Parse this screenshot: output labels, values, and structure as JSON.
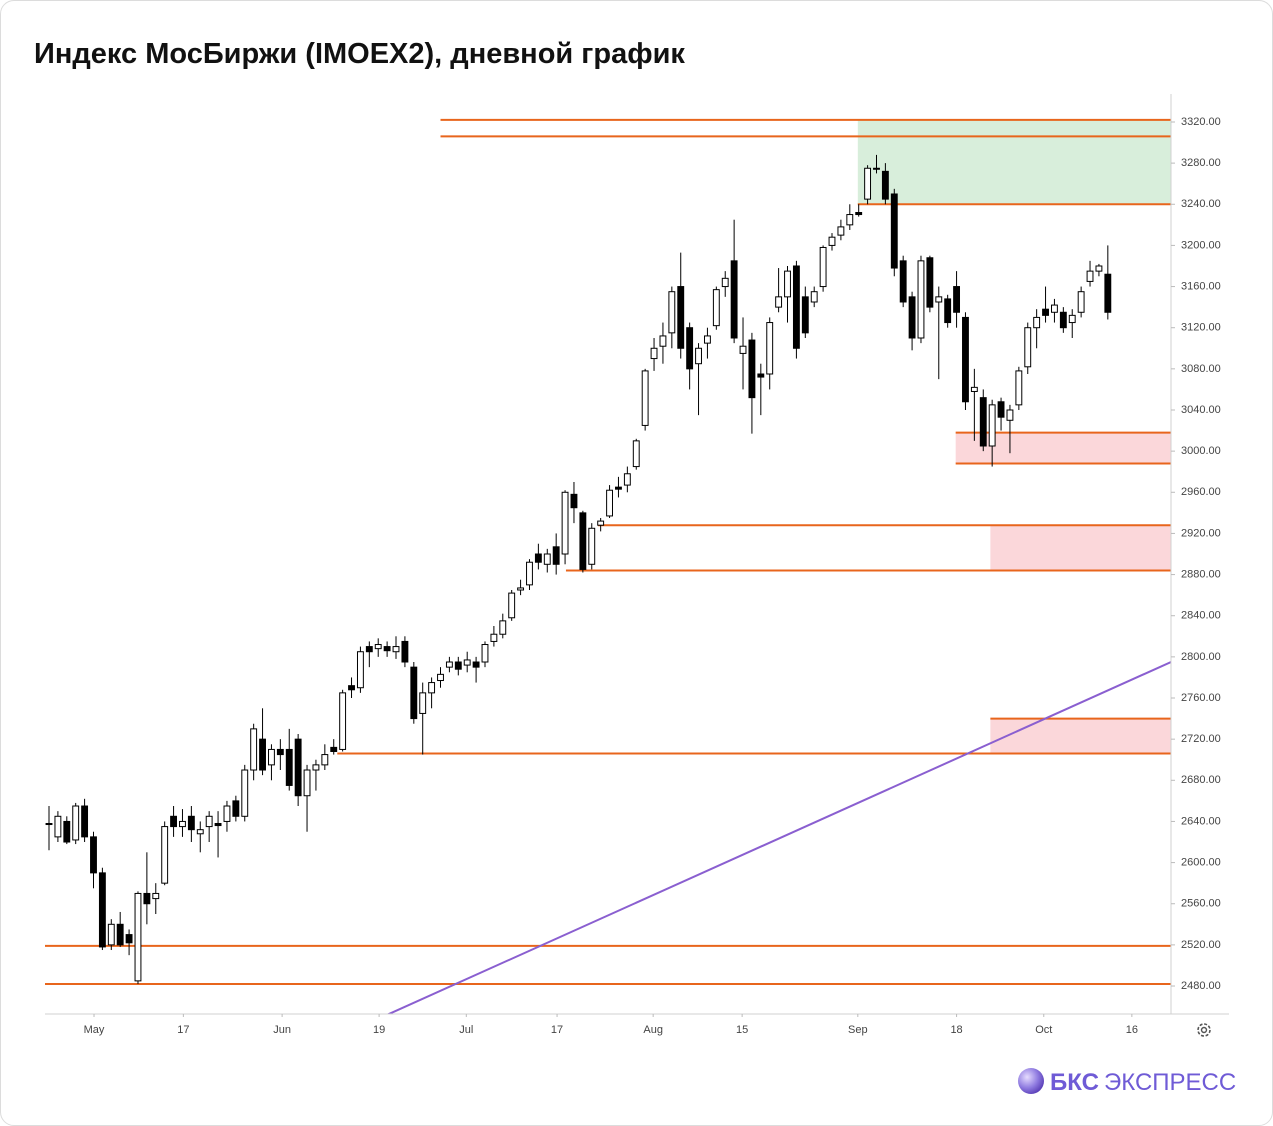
{
  "chart_data": {
    "type": "candlestick",
    "title": "Индекс МосБиржи (IMOEX2), дневной график",
    "logo_brand": "БКС",
    "logo_word": "ЭКСПРЕСС",
    "open": [
      2638,
      2625,
      2640,
      2622,
      2655,
      2625,
      2590,
      2520,
      2540,
      2530,
      2485,
      2570,
      2565,
      2580,
      2645,
      2635,
      2645,
      2628,
      2635,
      2638,
      2640,
      2660,
      2645,
      2690,
      2720,
      2695,
      2710,
      2710,
      2720,
      2665,
      2690,
      2695,
      2712,
      2710,
      2772,
      2770,
      2810,
      2808,
      2810,
      2805,
      2815,
      2790,
      2745,
      2765,
      2777,
      2790,
      2795,
      2792,
      2795,
      2795,
      2815,
      2822,
      2838,
      2865,
      2870,
      2900,
      2890,
      2907,
      2900,
      2958,
      2940,
      2890,
      2928,
      2937,
      2965,
      2967,
      2985,
      3025,
      3090,
      3102,
      3115,
      3160,
      3120,
      3085,
      3105,
      3122,
      3160,
      3185,
      3095,
      3108,
      3075,
      3075,
      3140,
      3150,
      3180,
      3150,
      3145,
      3160,
      3200,
      3210,
      3220,
      3232,
      3245,
      3275,
      3272,
      3250,
      3185,
      3150,
      3110,
      3188,
      3145,
      3148,
      3160,
      3130,
      3058,
      3052,
      3005,
      3048,
      3030,
      3045,
      3082,
      3120,
      3138,
      3135,
      3135,
      3125,
      3135,
      3165,
      3175,
      3172
    ],
    "high": [
      2655,
      2650,
      2645,
      2658,
      2662,
      2630,
      2595,
      2545,
      2552,
      2535,
      2572,
      2610,
      2580,
      2640,
      2655,
      2652,
      2655,
      2640,
      2650,
      2650,
      2660,
      2665,
      2695,
      2735,
      2750,
      2715,
      2720,
      2730,
      2725,
      2695,
      2700,
      2715,
      2720,
      2768,
      2780,
      2810,
      2815,
      2818,
      2815,
      2820,
      2820,
      2795,
      2775,
      2780,
      2790,
      2800,
      2800,
      2805,
      2800,
      2815,
      2830,
      2842,
      2865,
      2875,
      2895,
      2910,
      2905,
      2920,
      2962,
      2970,
      2942,
      2930,
      2935,
      2967,
      2975,
      2985,
      3012,
      3080,
      3110,
      3125,
      3160,
      3193,
      3125,
      3105,
      3120,
      3160,
      3175,
      3225,
      3130,
      3115,
      3085,
      3130,
      3178,
      3180,
      3185,
      3160,
      3160,
      3200,
      3212,
      3225,
      3240,
      3240,
      3278,
      3288,
      3280,
      3255,
      3190,
      3155,
      3190,
      3190,
      3160,
      3152,
      3175,
      3135,
      3080,
      3060,
      3050,
      3052,
      3045,
      3082,
      3125,
      3138,
      3160,
      3148,
      3140,
      3138,
      3160,
      3185,
      3182,
      3200
    ],
    "low": [
      2612,
      2620,
      2618,
      2618,
      2620,
      2575,
      2515,
      2515,
      2518,
      2510,
      2482,
      2540,
      2550,
      2578,
      2625,
      2625,
      2620,
      2610,
      2620,
      2605,
      2630,
      2640,
      2640,
      2680,
      2685,
      2680,
      2690,
      2670,
      2655,
      2630,
      2670,
      2690,
      2705,
      2708,
      2760,
      2765,
      2790,
      2800,
      2800,
      2798,
      2790,
      2735,
      2705,
      2750,
      2770,
      2785,
      2782,
      2785,
      2775,
      2790,
      2810,
      2818,
      2835,
      2860,
      2865,
      2885,
      2882,
      2880,
      2890,
      2930,
      2882,
      2885,
      2922,
      2935,
      2955,
      2960,
      2982,
      3020,
      3078,
      3085,
      3100,
      3090,
      3060,
      3035,
      3090,
      3118,
      3150,
      3105,
      3060,
      3017,
      3035,
      3060,
      3135,
      3125,
      3090,
      3110,
      3140,
      3155,
      3195,
      3205,
      3215,
      3228,
      3240,
      3270,
      3240,
      3170,
      3140,
      3098,
      3105,
      3135,
      3070,
      3120,
      3120,
      3040,
      3010,
      3000,
      2985,
      3020,
      2998,
      3040,
      3075,
      3100,
      3125,
      3125,
      3115,
      3110,
      3130,
      3160,
      3170,
      3128
    ],
    "close": [
      2637,
      2645,
      2620,
      2655,
      2625,
      2590,
      2518,
      2540,
      2520,
      2522,
      2570,
      2560,
      2570,
      2635,
      2635,
      2640,
      2632,
      2632,
      2645,
      2636,
      2655,
      2645,
      2690,
      2730,
      2690,
      2710,
      2705,
      2675,
      2665,
      2690,
      2695,
      2705,
      2708,
      2765,
      2768,
      2805,
      2805,
      2812,
      2806,
      2810,
      2795,
      2740,
      2765,
      2775,
      2783,
      2795,
      2788,
      2797,
      2790,
      2812,
      2822,
      2835,
      2862,
      2867,
      2892,
      2892,
      2900,
      2890,
      2960,
      2945,
      2885,
      2925,
      2932,
      2962,
      2963,
      2978,
      3010,
      3078,
      3100,
      3112,
      3155,
      3100,
      3080,
      3100,
      3112,
      3157,
      3168,
      3110,
      3102,
      3052,
      3072,
      3125,
      3150,
      3175,
      3100,
      3115,
      3155,
      3198,
      3208,
      3218,
      3230,
      3230,
      3275,
      3275,
      3245,
      3178,
      3145,
      3110,
      3185,
      3140,
      3150,
      3125,
      3135,
      3048,
      3062,
      3005,
      3045,
      3033,
      3040,
      3078,
      3120,
      3130,
      3132,
      3142,
      3120,
      3132,
      3155,
      3175,
      3180,
      3135
    ],
    "xlim": [
      -0.45,
      126.1
    ],
    "ylim": [
      2452.8,
      3347.2
    ],
    "xticks": [
      {
        "value": 5.06,
        "label": "May"
      },
      {
        "value": 15.1,
        "label": "17"
      },
      {
        "value": 26.2,
        "label": "Jun"
      },
      {
        "value": 37.1,
        "label": "19"
      },
      {
        "value": 46.9,
        "label": "Jul"
      },
      {
        "value": 57.1,
        "label": "17"
      },
      {
        "value": 67.9,
        "label": "Aug"
      },
      {
        "value": 77.9,
        "label": "15"
      },
      {
        "value": 90.9,
        "label": "Sep"
      },
      {
        "value": 102,
        "label": "18"
      },
      {
        "value": 111.8,
        "label": "Oct"
      },
      {
        "value": 121.7,
        "label": "16"
      }
    ],
    "yticks": [
      {
        "value": 2480,
        "label": "2480.00"
      },
      {
        "value": 2520,
        "label": "2520.00"
      },
      {
        "value": 2560,
        "label": "2560.00"
      },
      {
        "value": 2600,
        "label": "2600.00"
      },
      {
        "value": 2640,
        "label": "2640.00"
      },
      {
        "value": 2680,
        "label": "2680.00"
      },
      {
        "value": 2720,
        "label": "2720.00"
      },
      {
        "value": 2760,
        "label": "2760.00"
      },
      {
        "value": 2800,
        "label": "2800.00"
      },
      {
        "value": 2840,
        "label": "2840.00"
      },
      {
        "value": 2880,
        "label": "2880.00"
      },
      {
        "value": 2920,
        "label": "2920.00"
      },
      {
        "value": 2960,
        "label": "2960.00"
      },
      {
        "value": 3000,
        "label": "3000.00"
      },
      {
        "value": 3040,
        "label": "3040.00"
      },
      {
        "value": 3080,
        "label": "3080.00"
      },
      {
        "value": 3120,
        "label": "3120.00"
      },
      {
        "value": 3160,
        "label": "3160.00"
      },
      {
        "value": 3200,
        "label": "3200.00"
      },
      {
        "value": 3240,
        "label": "3240.00"
      },
      {
        "value": 3280,
        "label": "3280.00"
      },
      {
        "value": 3320,
        "label": "3320.00"
      }
    ],
    "up_color": "#ffffff",
    "down_color": "#000000",
    "level_color": "#e8651c",
    "levels": [
      {
        "value": 3322,
        "from": 44.0
      },
      {
        "value": 3306,
        "from": 44.0
      },
      {
        "value": 3240,
        "from": 90.9
      },
      {
        "value": 3018,
        "from": 101.9
      },
      {
        "value": 2988,
        "from": 101.9
      },
      {
        "value": 2928,
        "from": 61.7
      },
      {
        "value": 2884,
        "from": 58.1
      },
      {
        "value": 2740,
        "from": 105.8
      },
      {
        "value": 2706,
        "from": 32.4
      },
      {
        "value": 2519,
        "from": -0.45
      },
      {
        "value": 2482,
        "from": -0.45
      }
    ],
    "zones": [
      {
        "low": 3240,
        "high": 3322,
        "from": 90.9,
        "color": "#d8eedb"
      },
      {
        "low": 2988,
        "high": 3018,
        "from": 101.9,
        "color": "#fbd7da"
      },
      {
        "low": 2884,
        "high": 2928,
        "from": 105.8,
        "color": "#fbd7da"
      },
      {
        "low": 2706,
        "high": 2740,
        "from": 105.8,
        "color": "#fbd7da"
      }
    ],
    "trendline": {
      "x": [
        38,
        126.1
      ],
      "values": [
        2452,
        2795
      ],
      "color": "#8a5fd0"
    }
  }
}
